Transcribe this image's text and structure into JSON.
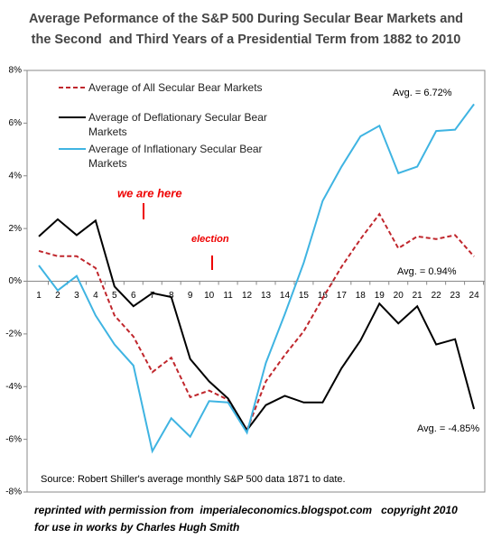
{
  "chart_data": {
    "type": "line",
    "title": [
      "Average Peformance of the S&P 500 During Secular Bear Markets and",
      "the Second  and Third Years of a Presidential Term from 1882 to 2010"
    ],
    "categories": [
      "1",
      "2",
      "3",
      "4",
      "5",
      "6",
      "7",
      "8",
      "9",
      "10",
      "11",
      "12",
      "13",
      "14",
      "15",
      "16",
      "17",
      "18",
      "19",
      "20",
      "21",
      "22",
      "23",
      "24"
    ],
    "series": [
      {
        "name": "Average of All Secular Bear Markets",
        "color": "#c0272d",
        "dashed": true,
        "values": [
          1.15,
          0.95,
          0.95,
          0.5,
          -1.3,
          -2.1,
          -3.45,
          -2.9,
          -4.4,
          -4.15,
          -4.5,
          -5.65,
          -3.8,
          -2.8,
          -1.9,
          -0.65,
          0.55,
          1.6,
          2.55,
          1.25,
          1.7,
          1.6,
          1.75,
          0.94
        ]
      },
      {
        "name": "Average of Deflationary Secular Bear Markets",
        "color": "#000000",
        "dashed": false,
        "values": [
          1.7,
          2.35,
          1.75,
          2.3,
          -0.2,
          -0.95,
          -0.45,
          -0.6,
          -2.95,
          -3.8,
          -4.45,
          -5.65,
          -4.7,
          -4.35,
          -4.6,
          -4.6,
          -3.3,
          -2.25,
          -0.85,
          -1.6,
          -0.95,
          -2.4,
          -2.2,
          -4.85
        ]
      },
      {
        "name": "Average of Inflationary Secular Bear Markets",
        "color": "#3fb4e2",
        "dashed": false,
        "values": [
          0.6,
          -0.35,
          0.2,
          -1.3,
          -2.4,
          -3.2,
          -6.45,
          -5.2,
          -5.9,
          -4.55,
          -4.6,
          -5.75,
          -3.1,
          -1.25,
          0.7,
          3.05,
          4.35,
          5.5,
          5.9,
          4.1,
          4.35,
          5.7,
          5.75,
          6.72
        ]
      }
    ],
    "ylim": [
      -8,
      8
    ],
    "yticks": [
      {
        "value": -8,
        "label": "-8%"
      },
      {
        "value": -6,
        "label": "-6%"
      },
      {
        "value": -4,
        "label": "-4%"
      },
      {
        "value": -2,
        "label": "-2%"
      },
      {
        "value": 0,
        "label": "0%"
      },
      {
        "value": 2,
        "label": "2%"
      },
      {
        "value": 4,
        "label": "4%"
      },
      {
        "value": 6,
        "label": "6%"
      },
      {
        "value": 8,
        "label": "8%"
      }
    ],
    "grid": false,
    "annotations": [
      "Avg. = 6.72%",
      "Avg. = 0.94%",
      "Avg. = -4.85%",
      "we are here",
      "election",
      "Source: Robert Shiller's average monthly S&P 500 data 1871  to date."
    ],
    "footer": [
      "reprinted with permission from  imperialeconomics.blogspot.com   copyright 2010",
      "for use in works by Charles Hugh Smith"
    ]
  }
}
